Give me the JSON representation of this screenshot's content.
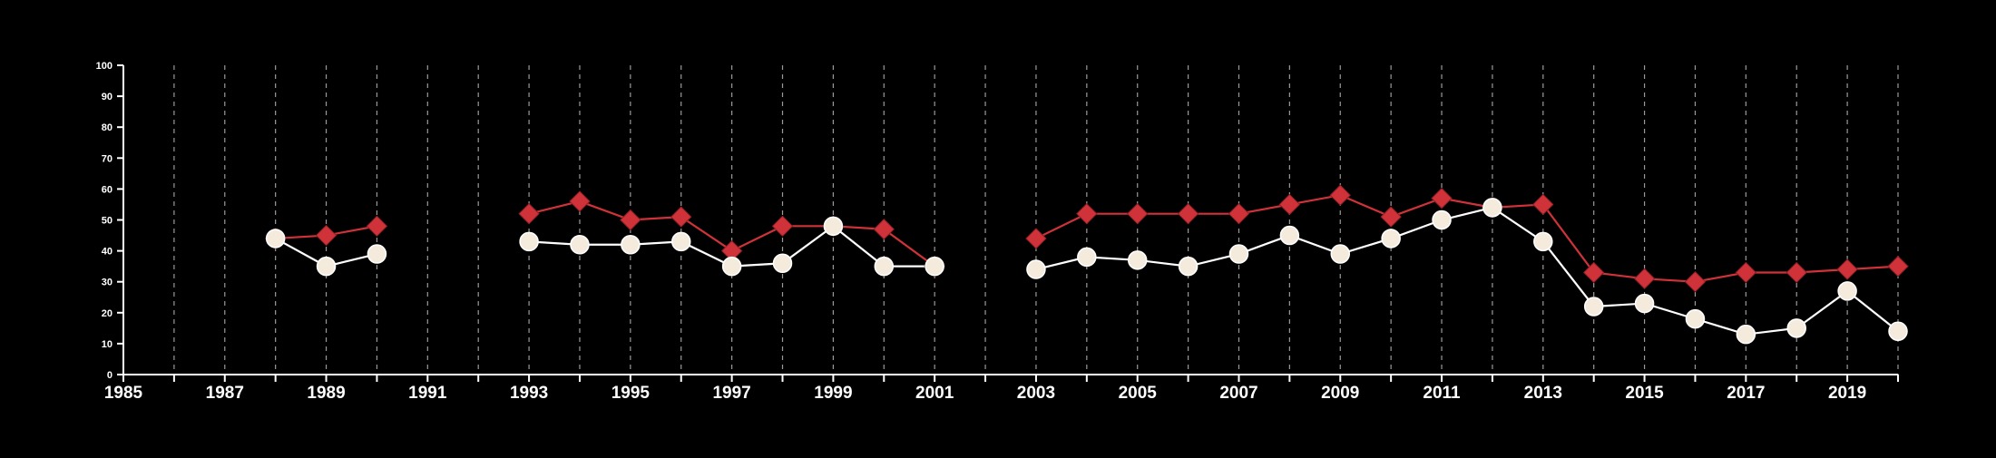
{
  "chart_data": {
    "type": "line",
    "title": "",
    "xlabel": "",
    "ylabel": "",
    "xlim": [
      1985,
      2020
    ],
    "ylim": [
      0,
      100
    ],
    "grid": "vertical dashed at every year",
    "legend": "none",
    "x_tick_labels": [
      "1985",
      "1987",
      "1989",
      "1991",
      "1993",
      "1995",
      "1997",
      "1999",
      "2001",
      "2003",
      "2005",
      "2007",
      "2009",
      "2011",
      "2013",
      "2015",
      "2017",
      "2019"
    ],
    "y_tick_labels": [
      "0",
      "10",
      "20",
      "30",
      "40",
      "50",
      "60",
      "70",
      "80",
      "90",
      "100"
    ],
    "x": [
      1988,
      1989,
      1990,
      1991,
      1992,
      1993,
      1994,
      1995,
      1996,
      1997,
      1998,
      1999,
      2000,
      2001,
      2002,
      2003,
      2004,
      2005,
      2006,
      2007,
      2008,
      2009,
      2010,
      2011,
      2012,
      2013,
      2014,
      2015,
      2016,
      2017,
      2018,
      2019,
      2020
    ],
    "series": [
      {
        "color": "#d0323a",
        "marker": "diamond",
        "values": [
          44,
          45,
          48,
          null,
          null,
          52,
          56,
          50,
          51,
          40,
          48,
          48,
          47,
          35,
          null,
          44,
          52,
          52,
          52,
          52,
          55,
          58,
          51,
          57,
          54,
          55,
          33,
          31,
          30,
          33,
          33,
          34,
          35
        ]
      },
      {
        "color": "#ffffff",
        "marker": "circle",
        "marker_fill": "#f5ebdc",
        "values": [
          44,
          35,
          39,
          null,
          null,
          43,
          42,
          42,
          43,
          35,
          36,
          48,
          35,
          35,
          null,
          34,
          38,
          37,
          35,
          39,
          45,
          39,
          44,
          50,
          54,
          43,
          22,
          23,
          18,
          13,
          15,
          27,
          14
        ]
      }
    ]
  }
}
